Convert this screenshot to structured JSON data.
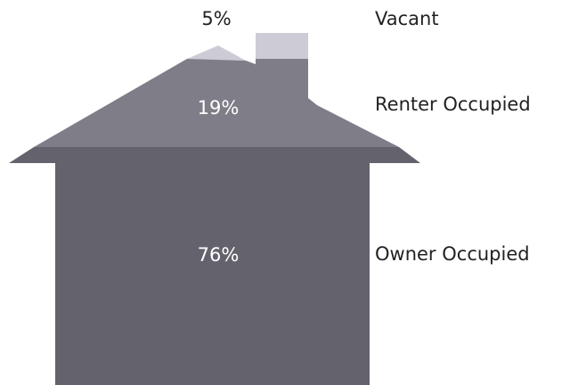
{
  "chart_data": {
    "type": "house",
    "categories": [
      "Vacant",
      "Renter Occupied",
      "Owner Occupied"
    ],
    "values": [
      5,
      19,
      76
    ],
    "value_labels": [
      "5%",
      "19%",
      "76%"
    ],
    "colors": [
      "#cdccd6",
      "#7f7e88",
      "#64636d"
    ]
  }
}
